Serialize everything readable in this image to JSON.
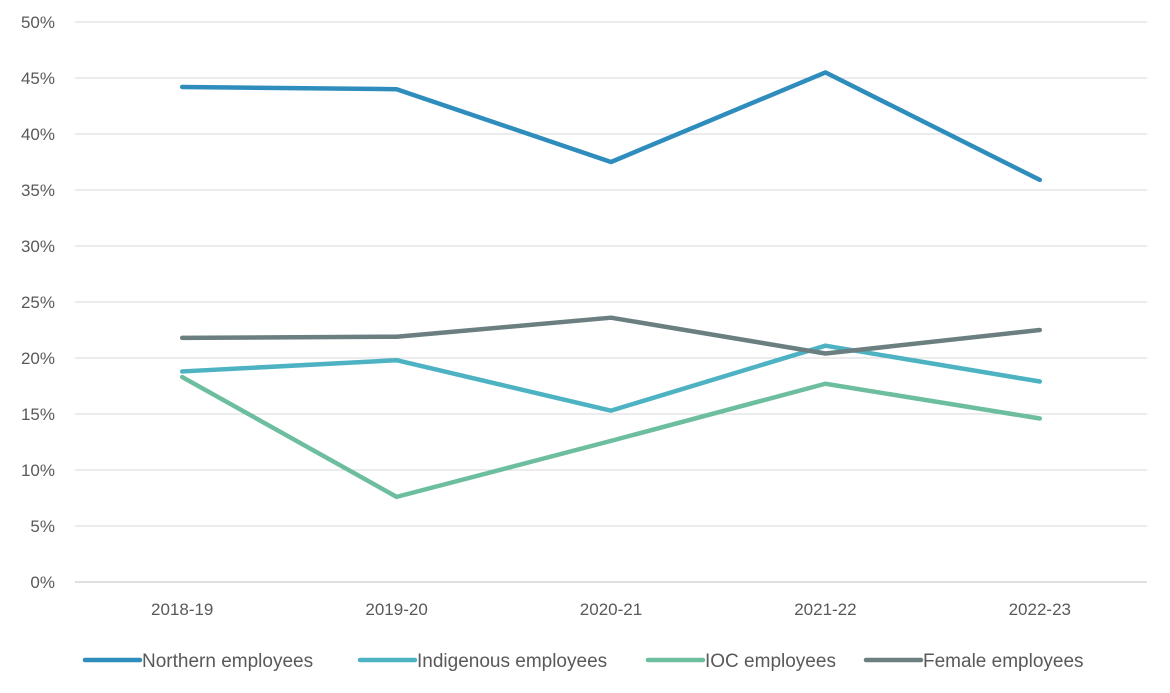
{
  "chart_data": {
    "type": "line",
    "title": "",
    "xlabel": "",
    "ylabel": "",
    "categories": [
      "2018-19",
      "2019-20",
      "2020-21",
      "2021-22",
      "2022-23"
    ],
    "ylim": [
      0,
      50
    ],
    "yticks": [
      0,
      5,
      10,
      15,
      20,
      25,
      30,
      35,
      40,
      45,
      50
    ],
    "ytick_labels": [
      "0%",
      "5%",
      "10%",
      "15%",
      "20%",
      "25%",
      "30%",
      "35%",
      "40%",
      "45%",
      "50%"
    ],
    "grid": true,
    "legend_position": "bottom",
    "series": [
      {
        "name": "Northern employees",
        "color": "#2e8dbd",
        "values": [
          44.2,
          44.0,
          37.5,
          45.5,
          35.9
        ]
      },
      {
        "name": "Indigenous employees",
        "color": "#4db3c3",
        "values": [
          18.8,
          19.8,
          15.3,
          21.1,
          17.9
        ]
      },
      {
        "name": "IOC employees",
        "color": "#6dbe9e",
        "values": [
          18.3,
          7.6,
          12.6,
          17.7,
          14.6
        ]
      },
      {
        "name": "Female employees",
        "color": "#6b7f80",
        "values": [
          21.8,
          21.9,
          23.6,
          20.4,
          22.5
        ]
      }
    ]
  }
}
